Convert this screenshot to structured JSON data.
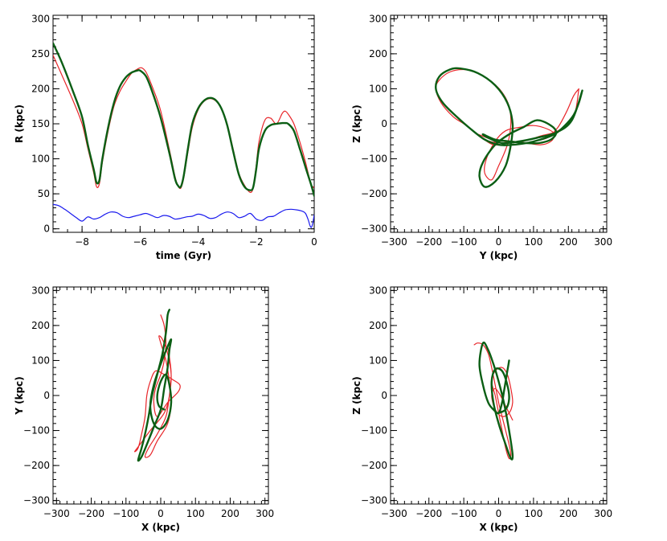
{
  "chart_data": [
    {
      "type": "line",
      "panel": "top-left",
      "xlabel": "time (Gyr)",
      "ylabel": "R (kpc)",
      "xlim": [
        -9,
        0
      ],
      "ylim": [
        -5,
        305
      ],
      "xticks": [
        -8,
        -6,
        -4,
        -2,
        0
      ],
      "yticks": [
        0,
        50,
        100,
        150,
        200,
        250,
        300
      ],
      "series": [
        {
          "name": "red",
          "color": "#e8262a",
          "width": 1.2,
          "x": [
            -9,
            -8.7,
            -8.3,
            -8,
            -7.8,
            -7.6,
            -7.5,
            -7.4,
            -7.3,
            -7.1,
            -6.9,
            -6.7,
            -6.5,
            -6.3,
            -6.1,
            -5.95,
            -5.8,
            -5.6,
            -5.3,
            -5.0,
            -4.8,
            -4.7,
            -4.6,
            -4.5,
            -4.35,
            -4.2,
            -4.0,
            -3.8,
            -3.6,
            -3.4,
            -3.2,
            -3.0,
            -2.8,
            -2.6,
            -2.4,
            -2.2,
            -2.1,
            -2.0,
            -1.9,
            -1.7,
            -1.5,
            -1.3,
            -1.1,
            -1.0,
            -0.9,
            -0.7,
            -0.5,
            -0.3,
            -0.1,
            0
          ],
          "y": [
            248,
            220,
            182,
            150,
            115,
            80,
            60,
            65,
            95,
            140,
            175,
            196,
            210,
            222,
            228,
            230,
            224,
            205,
            170,
            115,
            75,
            62,
            58,
            72,
            110,
            145,
            170,
            182,
            186,
            183,
            172,
            150,
            115,
            80,
            62,
            52,
            60,
            90,
            125,
            155,
            158,
            150,
            165,
            168,
            164,
            150,
            125,
            95,
            62,
            60
          ]
        },
        {
          "name": "green",
          "color": "#0b5e14",
          "width": 2.4,
          "x": [
            -9,
            -8.7,
            -8.3,
            -8,
            -7.8,
            -7.6,
            -7.5,
            -7.4,
            -7.3,
            -7.1,
            -6.9,
            -6.7,
            -6.5,
            -6.3,
            -6.1,
            -6.0,
            -5.8,
            -5.6,
            -5.3,
            -5.0,
            -4.8,
            -4.7,
            -4.6,
            -4.5,
            -4.35,
            -4.2,
            -4.0,
            -3.8,
            -3.6,
            -3.4,
            -3.2,
            -3.0,
            -2.8,
            -2.6,
            -2.4,
            -2.2,
            -2.1,
            -2.0,
            -1.9,
            -1.7,
            -1.5,
            -1.3,
            -1.1,
            -1.0,
            -0.9,
            -0.7,
            -0.5,
            -0.3,
            -0.1,
            0
          ],
          "y": [
            265,
            238,
            195,
            160,
            120,
            85,
            66,
            70,
            100,
            145,
            180,
            203,
            216,
            223,
            226,
            226,
            218,
            198,
            160,
            110,
            72,
            62,
            60,
            75,
            115,
            150,
            172,
            183,
            187,
            184,
            172,
            148,
            112,
            78,
            60,
            55,
            60,
            85,
            115,
            140,
            148,
            150,
            151,
            151,
            150,
            140,
            115,
            88,
            62,
            47
          ]
        },
        {
          "name": "blue",
          "color": "#1a1aee",
          "width": 1.2,
          "x": [
            -9,
            -8.8,
            -8.6,
            -8.4,
            -8.2,
            -8.0,
            -7.8,
            -7.6,
            -7.4,
            -7.2,
            -7.0,
            -6.8,
            -6.6,
            -6.4,
            -6.2,
            -6.0,
            -5.8,
            -5.6,
            -5.4,
            -5.2,
            -5.0,
            -4.8,
            -4.6,
            -4.4,
            -4.2,
            -4.0,
            -3.8,
            -3.6,
            -3.4,
            -3.2,
            -3.0,
            -2.8,
            -2.6,
            -2.4,
            -2.2,
            -2.0,
            -1.8,
            -1.6,
            -1.4,
            -1.2,
            -1.0,
            -0.8,
            -0.6,
            -0.4,
            -0.3,
            -0.2,
            -0.15,
            -0.1,
            -0.05,
            0
          ],
          "y": [
            35,
            33,
            28,
            22,
            16,
            11,
            17,
            14,
            16,
            21,
            24,
            23,
            18,
            16,
            18,
            20,
            22,
            19,
            16,
            19,
            18,
            14,
            15,
            17,
            18,
            21,
            19,
            15,
            16,
            21,
            24,
            22,
            16,
            18,
            22,
            14,
            12,
            17,
            18,
            23,
            27,
            28,
            27,
            25,
            22,
            12,
            5,
            2,
            8,
            20
          ]
        }
      ]
    },
    {
      "type": "line",
      "panel": "top-right",
      "xlabel": "Y (kpc)",
      "ylabel": "Z (kpc)",
      "xlim": [
        -310,
        310
      ],
      "ylim": [
        -310,
        310
      ],
      "xticks": [
        -300,
        -200,
        -100,
        0,
        100,
        200,
        300
      ],
      "yticks": [
        -300,
        -200,
        -100,
        0,
        100,
        200,
        300
      ],
      "series": [
        {
          "name": "red",
          "color": "#e8262a",
          "width": 1.2,
          "x": [
            230,
            215,
            195,
            170,
            140,
            100,
            60,
            20,
            -20,
            -60,
            -100,
            -130,
            -165,
            -180,
            -170,
            -140,
            -100,
            -60,
            -20,
            10,
            30,
            35,
            25,
            0,
            -20,
            -40,
            -35,
            -10,
            20,
            60,
            100,
            140,
            160,
            150,
            120,
            80,
            40,
            0,
            -40,
            -60,
            -20,
            20,
            70,
            120,
            170,
            215,
            230
          ],
          "y": [
            100,
            80,
            35,
            -10,
            -40,
            -50,
            -58,
            -60,
            -58,
            -30,
            0,
            20,
            60,
            100,
            125,
            148,
            155,
            145,
            120,
            90,
            50,
            0,
            -60,
            -120,
            -160,
            -140,
            -100,
            -50,
            -20,
            -10,
            -5,
            -15,
            -30,
            -50,
            -60,
            -55,
            -50,
            -55,
            -45,
            -30,
            -45,
            -55,
            -50,
            -35,
            -20,
            20,
            100
          ]
        },
        {
          "name": "green",
          "color": "#0b5e14",
          "width": 2.4,
          "x": [
            240,
            230,
            215,
            190,
            160,
            120,
            80,
            40,
            0,
            -40,
            -80,
            -120,
            -160,
            -180,
            -170,
            -140,
            -110,
            -60,
            -10,
            25,
            40,
            35,
            20,
            -10,
            -40,
            -55,
            -45,
            -10,
            30,
            70,
            110,
            150,
            165,
            150,
            115,
            75,
            30,
            -10,
            -45,
            -30,
            10,
            60,
            110,
            165,
            210,
            240
          ],
          "y": [
            95,
            60,
            25,
            -5,
            -30,
            -45,
            -55,
            -60,
            -60,
            -45,
            -15,
            20,
            60,
            100,
            135,
            155,
            158,
            145,
            110,
            60,
            0,
            -60,
            -120,
            -165,
            -180,
            -150,
            -110,
            -60,
            -30,
            -10,
            10,
            -5,
            -25,
            -45,
            -55,
            -55,
            -50,
            -45,
            -30,
            -40,
            -55,
            -50,
            -40,
            -25,
            10,
            95
          ]
        }
      ]
    },
    {
      "type": "line",
      "panel": "bottom-left",
      "xlabel": "X (kpc)",
      "ylabel": "Y (kpc)",
      "xlim": [
        -310,
        310
      ],
      "ylim": [
        -310,
        310
      ],
      "xticks": [
        -300,
        -200,
        -100,
        0,
        100,
        200,
        300
      ],
      "yticks": [
        -300,
        -200,
        -100,
        0,
        100,
        200,
        300
      ],
      "series": [
        {
          "name": "red",
          "color": "#e8262a",
          "width": 1.2,
          "x": [
            0,
            10,
            15,
            10,
            0,
            -15,
            -20,
            -10,
            20,
            50,
            55,
            35,
            10,
            -15,
            -30,
            -40,
            -45,
            -55,
            -65,
            -75,
            -60,
            -30,
            10,
            25,
            30,
            20,
            5,
            -5,
            0,
            15,
            25,
            30,
            20,
            -10,
            -30,
            -45,
            -35,
            -10,
            15,
            25,
            30,
            25,
            20
          ],
          "y": [
            230,
            200,
            150,
            100,
            60,
            20,
            -20,
            -60,
            -20,
            10,
            30,
            45,
            60,
            70,
            40,
            0,
            -60,
            -110,
            -150,
            -160,
            -140,
            -100,
            -50,
            0,
            60,
            120,
            160,
            170,
            150,
            100,
            40,
            -20,
            -80,
            -130,
            -170,
            -175,
            -150,
            -110,
            -60,
            0,
            60,
            110,
            140
          ],
          "anchor": "top"
        },
        {
          "name": "green",
          "color": "#0b5e14",
          "width": 2.4,
          "x": [
            25,
            20,
            15,
            5,
            -10,
            -25,
            -35,
            -45,
            -55,
            -65,
            -55,
            -40,
            -20,
            0,
            10,
            20,
            25,
            30,
            20,
            0,
            -20,
            -30,
            -20,
            0,
            20,
            30,
            25,
            15,
            0,
            -10,
            -5,
            10
          ],
          "y": [
            245,
            230,
            180,
            120,
            60,
            0,
            -60,
            -110,
            -150,
            -185,
            -175,
            -140,
            -90,
            -40,
            20,
            80,
            130,
            160,
            140,
            90,
            30,
            -30,
            -80,
            -95,
            -70,
            -20,
            30,
            60,
            40,
            0,
            -30,
            -40
          ],
          "anchor": "top"
        }
      ]
    },
    {
      "type": "line",
      "panel": "bottom-right",
      "xlabel": "X (kpc)",
      "ylabel": "Z (kpc)",
      "xlim": [
        -310,
        310
      ],
      "ylim": [
        -310,
        310
      ],
      "xticks": [
        -300,
        -200,
        -100,
        0,
        100,
        200,
        300
      ],
      "yticks": [
        -300,
        -200,
        -100,
        0,
        100,
        200,
        300
      ],
      "series": [
        {
          "name": "red",
          "color": "#e8262a",
          "width": 1.2,
          "x": [
            -70,
            -60,
            -45,
            -30,
            -20,
            -10,
            0,
            10,
            20,
            30,
            35,
            30,
            20,
            10,
            0,
            -10,
            -20,
            -10,
            10,
            25,
            35,
            40,
            30,
            10,
            -10,
            -20,
            -10,
            5,
            20,
            30,
            35,
            40
          ],
          "y": [
            145,
            150,
            145,
            120,
            80,
            30,
            -20,
            -60,
            -100,
            -140,
            -170,
            -180,
            -150,
            -100,
            -50,
            0,
            40,
            70,
            80,
            60,
            20,
            -20,
            -50,
            -60,
            -40,
            0,
            20,
            0,
            -30,
            -50,
            -60,
            -70
          ]
        },
        {
          "name": "green",
          "color": "#0b5e14",
          "width": 2.4,
          "x": [
            30,
            25,
            20,
            15,
            10,
            0,
            -15,
            -30,
            -45,
            -55,
            -45,
            -30,
            -15,
            0,
            15,
            30,
            40,
            35,
            20,
            0,
            -15,
            -20,
            -10,
            10,
            25,
            30,
            20,
            0
          ],
          "y": [
            100,
            70,
            40,
            10,
            -20,
            -50,
            -40,
            -20,
            30,
            90,
            150,
            130,
            90,
            40,
            -20,
            -100,
            -170,
            -180,
            -140,
            -80,
            -20,
            40,
            75,
            70,
            30,
            -10,
            -40,
            -50
          ]
        }
      ]
    }
  ]
}
